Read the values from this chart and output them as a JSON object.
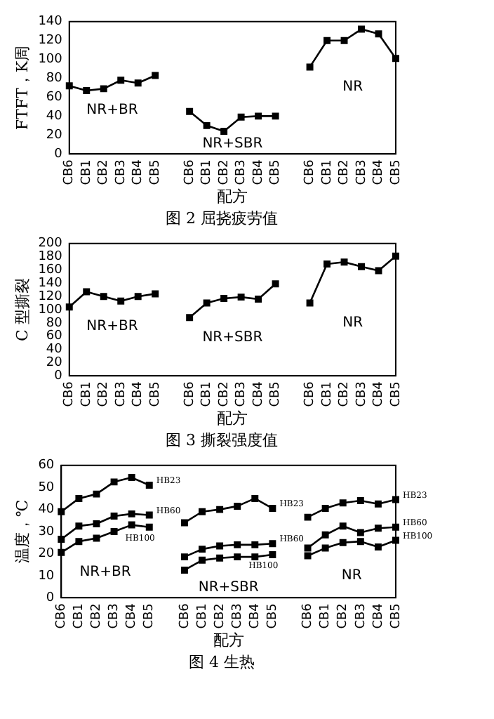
{
  "chart_data": [
    {
      "type": "line",
      "title": "图 2  屈挠疲劳值",
      "xlabel": "配方",
      "ylabel": "FTFT，K周",
      "categories": [
        "CB6",
        "CB1",
        "CB2",
        "CB3",
        "CB4",
        "CB5",
        null,
        "CB6",
        "CB1",
        "CB2",
        "CB3",
        "CB4",
        "CB5",
        null,
        "CB6",
        "CB1",
        "CB2",
        "CB3",
        "CB4",
        "CB5"
      ],
      "series": [
        {
          "color": "#000000",
          "values": [
            72,
            67,
            69,
            78,
            75,
            83,
            null,
            45,
            30,
            24,
            39,
            40,
            40,
            null,
            92,
            120,
            120,
            132,
            127,
            101
          ]
        }
      ],
      "ylim": [
        0,
        140
      ],
      "yticks": [
        0,
        20,
        40,
        60,
        80,
        100,
        120,
        140
      ],
      "marker": "square",
      "line_style": "solid",
      "annotations": [
        "NR+BR",
        "NR+SBR",
        "NR"
      ]
    },
    {
      "type": "line",
      "title": "图 3  撕裂强度值",
      "xlabel": "配方",
      "ylabel": "C 型撕裂",
      "categories": [
        "CB6",
        "CB1",
        "CB2",
        "CB3",
        "CB4",
        "CB5",
        null,
        "CB6",
        "CB1",
        "CB2",
        "CB3",
        "CB4",
        "CB5",
        null,
        "CB6",
        "CB1",
        "CB2",
        "CB3",
        "CB4",
        "CB5"
      ],
      "series": [
        {
          "color": "#000000",
          "values": [
            104,
            127,
            120,
            113,
            120,
            124,
            null,
            88,
            110,
            117,
            119,
            116,
            139,
            null,
            110,
            169,
            172,
            165,
            159,
            181
          ]
        }
      ],
      "ylim": [
        0,
        200
      ],
      "yticks": [
        0,
        20,
        40,
        60,
        80,
        100,
        120,
        140,
        160,
        180,
        200
      ],
      "marker": "square",
      "line_style": "solid",
      "annotations": [
        "NR+BR",
        "NR+SBR",
        "NR"
      ]
    },
    {
      "type": "line",
      "title": "图 4  生热",
      "xlabel": "配方",
      "ylabel": "温度，℃",
      "categories": [
        "CB6",
        "CB1",
        "CB2",
        "CB3",
        "CB4",
        "CB5",
        null,
        "CB6",
        "CB1",
        "CB2",
        "CB3",
        "CB4",
        "CB5",
        null,
        "CB6",
        "CB1",
        "CB2",
        "CB3",
        "CB4",
        "CB5"
      ],
      "series": [
        {
          "name": "HB23",
          "color": "#000000",
          "values": [
            39,
            45,
            47,
            52.5,
            54.5,
            51,
            null,
            34,
            39,
            40,
            41.5,
            45,
            40.5,
            null,
            36.5,
            40.5,
            43,
            44,
            42.5,
            44.5
          ]
        },
        {
          "name": "HB60",
          "color": "#000000",
          "values": [
            26.5,
            32.5,
            33.5,
            37,
            38,
            37.5,
            null,
            18.5,
            22,
            23.5,
            24,
            24,
            24.5,
            null,
            22.5,
            28.5,
            32.5,
            29.5,
            31.5,
            32
          ]
        },
        {
          "name": "HB100",
          "color": "#000000",
          "values": [
            20.5,
            25.5,
            27,
            30,
            33,
            32,
            null,
            12.5,
            17,
            18,
            18.5,
            18.5,
            19.5,
            null,
            19,
            22.5,
            25,
            25.5,
            23,
            26
          ]
        }
      ],
      "ylim": [
        0,
        60
      ],
      "yticks": [
        0,
        10,
        20,
        30,
        40,
        50,
        60
      ],
      "marker": "square",
      "line_style": "solid",
      "annotations": [
        "NR+BR",
        "NR+SBR",
        "NR"
      ]
    }
  ]
}
